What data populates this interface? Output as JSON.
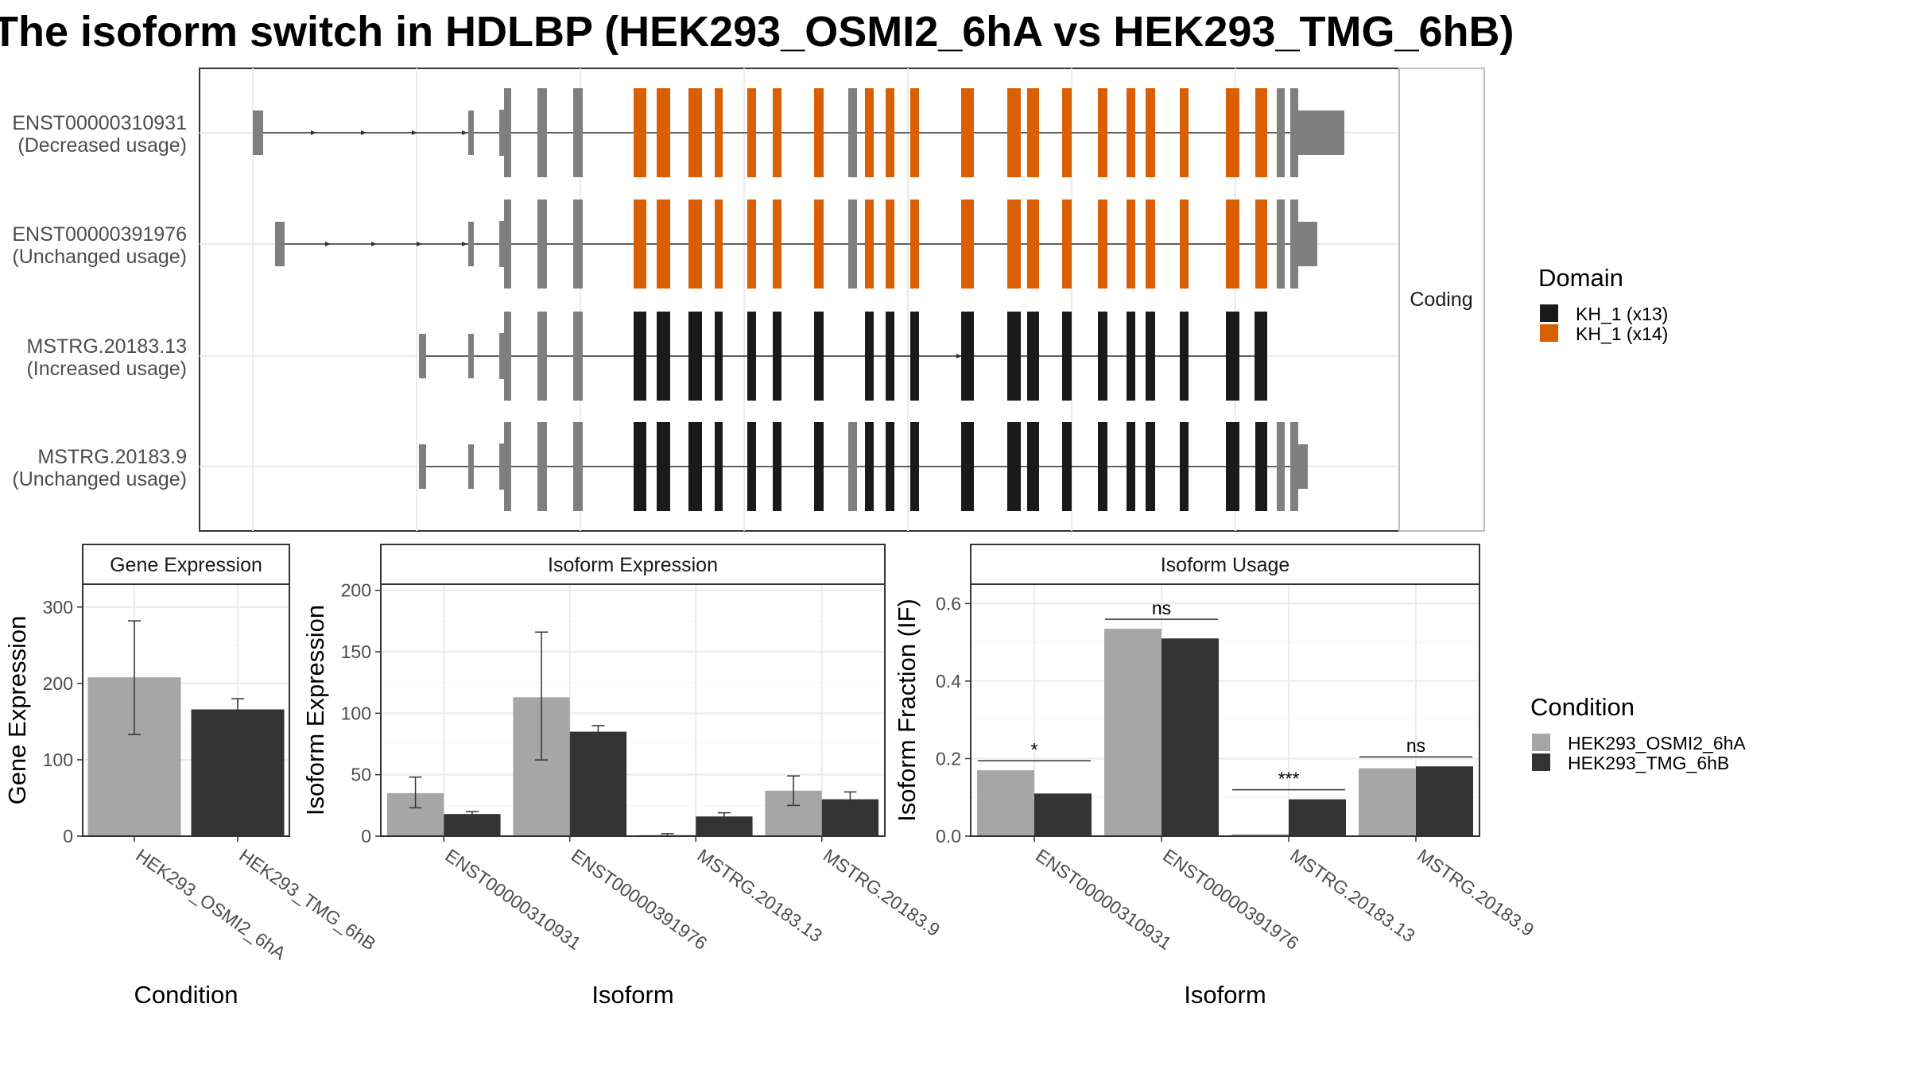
{
  "title": "The isoform switch in HDLBP (HEK293_OSMI2_6hA vs HEK293_TMG_6hB)",
  "colors": {
    "exon": "#7f7f7f",
    "kh_1_x13": "#1a1a1a",
    "kh_1_x14": "#d95f02",
    "cond_a": "#a6a6a6",
    "cond_b": "#333333"
  },
  "structure_panel": {
    "facet_label": "Coding",
    "isoforms": [
      {
        "id": "ENST00000310931",
        "usage": "(Decreased usage)"
      },
      {
        "id": "ENST00000391976",
        "usage": "(Unchanged usage)"
      },
      {
        "id": "MSTRG.20183.13",
        "usage": "(Increased usage)"
      },
      {
        "id": "MSTRG.20183.9",
        "usage": "(Unchanged usage)"
      }
    ]
  },
  "domain_legend": {
    "title": "Domain",
    "items": [
      {
        "label": "KH_1 (x13)",
        "color": "#1a1a1a"
      },
      {
        "label": "KH_1 (x14)",
        "color": "#d95f02"
      }
    ]
  },
  "condition_legend": {
    "title": "Condition",
    "items": [
      {
        "label": "HEK293_OSMI2_6hA",
        "color": "#a6a6a6"
      },
      {
        "label": "HEK293_TMG_6hB",
        "color": "#333333"
      }
    ]
  },
  "chart_data": [
    {
      "type": "bar",
      "strip_title": "Gene Expression",
      "xlabel": "Condition",
      "ylabel": "Gene Expression",
      "ylim": [
        0,
        330
      ],
      "yticks": [
        0,
        100,
        200,
        300
      ],
      "categories": [
        "HEK293_OSMI2_6hA",
        "HEK293_TMG_6hB"
      ],
      "values": [
        208,
        166
      ],
      "error_low": [
        133,
        150
      ],
      "error_high": [
        282,
        180
      ]
    },
    {
      "type": "bar",
      "strip_title": "Isoform Expression",
      "xlabel": "Isoform",
      "ylabel": "Isoform Expression",
      "ylim": [
        0,
        205
      ],
      "yticks": [
        0,
        50,
        100,
        150,
        200
      ],
      "categories": [
        "ENST00000310931",
        "ENST00000391976",
        "MSTRG.20183.13",
        "MSTRG.20183.9"
      ],
      "series": [
        {
          "name": "HEK293_OSMI2_6hA",
          "values": [
            35,
            113,
            1,
            37
          ],
          "error_low": [
            23,
            62,
            0,
            25
          ],
          "error_high": [
            48,
            166,
            2,
            49
          ]
        },
        {
          "name": "HEK293_TMG_6hB",
          "values": [
            18,
            85,
            16,
            30
          ],
          "error_low": [
            16,
            80,
            13,
            25
          ],
          "error_high": [
            20,
            90,
            19,
            36
          ]
        }
      ]
    },
    {
      "type": "bar",
      "strip_title": "Isoform Usage",
      "xlabel": "Isoform",
      "ylabel": "Isoform Fraction (IF)",
      "ylim": [
        0,
        0.65
      ],
      "yticks": [
        "0.0",
        "0.2",
        "0.4",
        "0.6"
      ],
      "categories": [
        "ENST00000310931",
        "ENST00000391976",
        "MSTRG.20183.13",
        "MSTRG.20183.9"
      ],
      "series": [
        {
          "name": "HEK293_OSMI2_6hA",
          "values": [
            0.17,
            0.535,
            0.005,
            0.175
          ]
        },
        {
          "name": "HEK293_TMG_6hB",
          "values": [
            0.11,
            0.51,
            0.095,
            0.18
          ]
        }
      ],
      "significance": [
        "*",
        "ns",
        "***",
        "ns"
      ]
    }
  ]
}
